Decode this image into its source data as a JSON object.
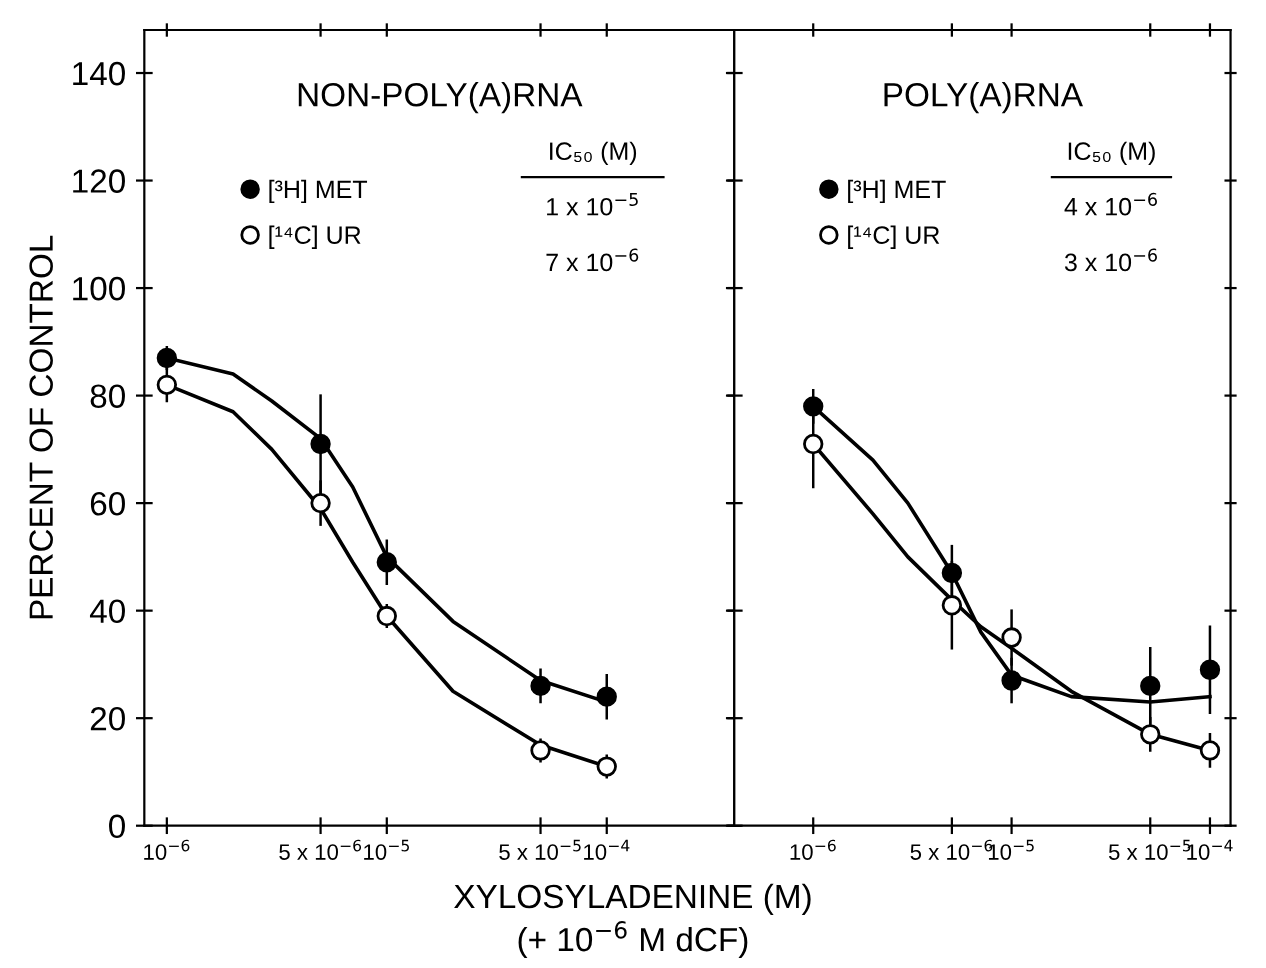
{
  "chart_data": [
    {
      "type": "scatter",
      "title": "NON-POLY(A)RNA",
      "xlabel": "XYLOSYLADENINE (M)\n(+ 10$^{−6}$ M dCF)",
      "ylabel": "PERCENT OF CONTROL",
      "log": "x",
      "xlim": [
        7.9e-07,
        0.00038
      ],
      "ylim": [
        0,
        148
      ],
      "xticks": [
        {
          "value": 1e-06,
          "label": "10$^{−6}$"
        },
        {
          "value": 5e-06,
          "label": "5 x 10$^{−6}$"
        },
        {
          "value": 1e-05,
          "label": "10$^{−5}$"
        },
        {
          "value": 5e-05,
          "label": "5 x 10$^{−5}$"
        },
        {
          "value": 0.0001,
          "label": "10$^{−4}$"
        }
      ],
      "yticks": [
        0,
        20,
        40,
        60,
        80,
        100,
        120,
        140
      ],
      "grid": false,
      "legend": "top left",
      "marker": "circle",
      "annotations": [
        "IC₅₀ (M)",
        "1 x 10$^{−5}$",
        "7 x 10$^{−6}$"
      ],
      "series": [
        {
          "name": "[³H] MET",
          "color": "#000000",
          "x": [
            1e-06,
            5e-06,
            1e-05,
            5e-05,
            0.0001
          ],
          "values": [
            87,
            71,
            49,
            26,
            24
          ],
          "errors": [
            2,
            9,
            4,
            3,
            4
          ]
        },
        {
          "name": "[¹⁴C] UR",
          "color": "#ffffff",
          "x": [
            1e-06,
            5e-06,
            1e-05,
            5e-05,
            0.0001
          ],
          "values": [
            82,
            60,
            39,
            14,
            11
          ],
          "errors": [
            3,
            4,
            2,
            2,
            2
          ]
        },
        {
          "type": "line",
          "color": "#000000",
          "marker": "none",
          "x": [
            1e-06,
            2e-06,
            3e-06,
            5e-06,
            7e-06,
            1e-05,
            2e-05,
            5e-05,
            0.0001
          ],
          "values": [
            87,
            84,
            79,
            72,
            63,
            50,
            38,
            27,
            23
          ]
        },
        {
          "type": "line",
          "color": "#000000",
          "marker": "none",
          "x": [
            1e-06,
            2e-06,
            3e-06,
            5e-06,
            7e-06,
            1e-05,
            2e-05,
            5e-05,
            0.0001
          ],
          "values": [
            82,
            77,
            70,
            59,
            49,
            39,
            25,
            15,
            11
          ]
        }
      ]
    },
    {
      "type": "scatter",
      "title": "POLY(A)RNA",
      "log": "x",
      "xlim": [
        4e-07,
        0.000127
      ],
      "ylim": [
        0,
        148
      ],
      "xticks": [
        {
          "value": 1e-06,
          "label": "10$^{−6}$"
        },
        {
          "value": 5e-06,
          "label": "5 x 10$^{−6}$"
        },
        {
          "value": 1e-05,
          "label": "10$^{−5}$"
        },
        {
          "value": 5e-05,
          "label": "5 x 10$^{−5}$"
        },
        {
          "value": 0.0001,
          "label": "10$^{−4}$"
        }
      ],
      "yticks": [
        0,
        20,
        40,
        60,
        80,
        100,
        120,
        140
      ],
      "tick_labels": "x",
      "grid": false,
      "legend": "top left",
      "marker": "circle",
      "annotations": [
        "IC₅₀ (M)",
        "4 x 10$^{−6}$",
        "3 x 10$^{−6}$"
      ],
      "series": [
        {
          "name": "[³H] MET",
          "color": "#000000",
          "x": [
            1e-06,
            5e-06,
            1e-05,
            5e-05,
            0.0001
          ],
          "values": [
            78,
            47,
            27,
            26,
            29
          ],
          "errors": [
            3,
            5,
            4,
            7,
            8
          ]
        },
        {
          "name": "[¹⁴C] UR",
          "color": "#ffffff",
          "x": [
            1e-06,
            5e-06,
            1e-05,
            5e-05,
            0.0001
          ],
          "values": [
            71,
            41,
            35,
            17,
            14
          ],
          "errors": [
            8,
            8,
            5,
            3,
            3
          ]
        },
        {
          "type": "line",
          "color": "#000000",
          "marker": "none",
          "x": [
            1e-06,
            2e-06,
            3e-06,
            5e-06,
            7e-06,
            1e-05,
            2e-05,
            5e-05,
            0.0001
          ],
          "values": [
            78,
            68,
            60,
            47,
            36,
            28,
            24,
            23,
            24
          ]
        },
        {
          "type": "line",
          "color": "#000000",
          "marker": "none",
          "x": [
            1e-06,
            2e-06,
            3e-06,
            5e-06,
            7e-06,
            1e-05,
            2e-05,
            5e-05,
            0.0001
          ],
          "values": [
            71,
            58,
            50,
            42,
            37,
            33,
            25,
            17,
            14
          ]
        }
      ]
    }
  ]
}
